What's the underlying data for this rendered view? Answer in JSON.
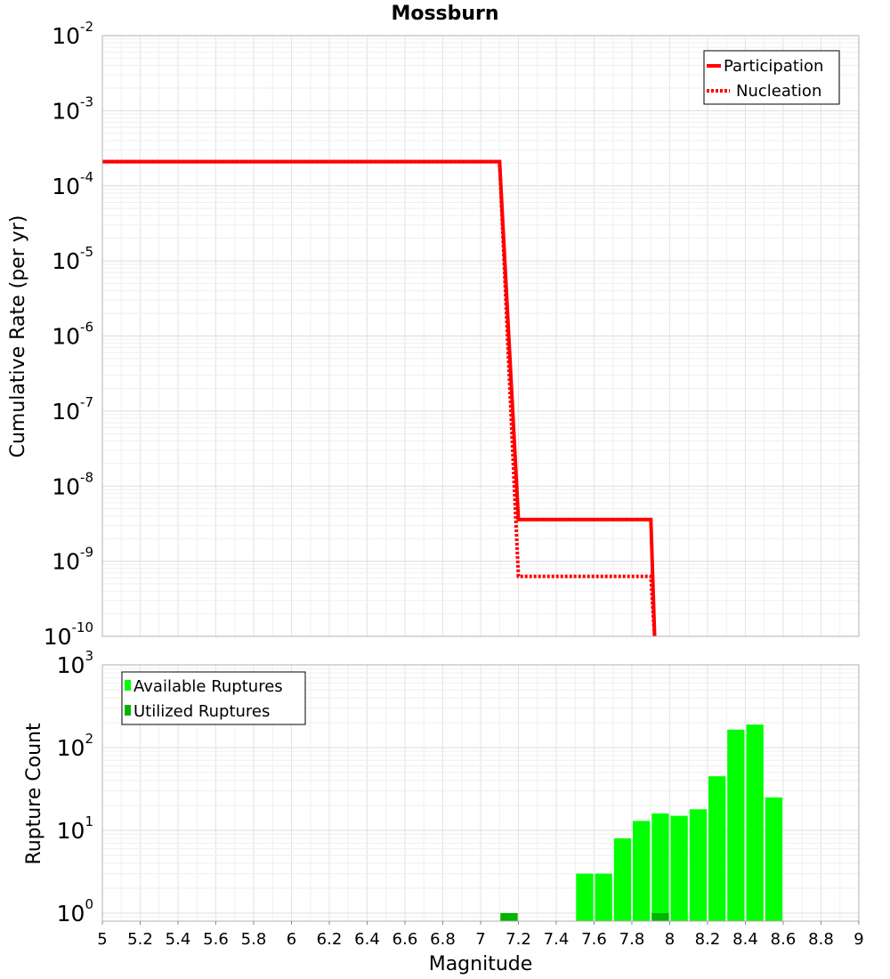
{
  "chart_data": [
    {
      "type": "line",
      "title": "Mossburn",
      "xlabel": "",
      "ylabel": "Cumulative Rate (per yr)",
      "xlim": [
        5,
        9
      ],
      "ylim": [
        1e-10,
        0.01
      ],
      "yscale": "log",
      "y_tick_labels": [
        {
          "base": "10",
          "exp": "-10"
        },
        {
          "base": "10",
          "exp": "-9"
        },
        {
          "base": "10",
          "exp": "-8"
        },
        {
          "base": "10",
          "exp": "-7"
        },
        {
          "base": "10",
          "exp": "-6"
        },
        {
          "base": "10",
          "exp": "-5"
        },
        {
          "base": "10",
          "exp": "-4"
        },
        {
          "base": "10",
          "exp": "-3"
        },
        {
          "base": "10",
          "exp": "-2"
        }
      ],
      "grid": true,
      "legend_position": "top-right",
      "series": [
        {
          "name": "Participation",
          "style": "solid",
          "color": "#ff0000",
          "x": [
            5.0,
            7.1,
            7.2,
            7.9,
            7.92
          ],
          "y": [
            0.00021,
            0.00021,
            3.6e-09,
            3.6e-09,
            1e-10
          ]
        },
        {
          "name": "Nucleation",
          "style": "dotted",
          "color": "#ff0000",
          "x": [
            5.0,
            7.1,
            7.2,
            7.9,
            7.92
          ],
          "y": [
            0.00021,
            0.00021,
            6.3e-10,
            6.3e-10,
            1e-10
          ]
        }
      ]
    },
    {
      "type": "bar",
      "title": "",
      "xlabel": "Magnitude",
      "ylabel": "Rupture Count",
      "xlim": [
        5,
        9
      ],
      "ylim": [
        0.8,
        1000
      ],
      "yscale": "log",
      "x_ticks": [
        "5",
        "5.2",
        "5.4",
        "5.6",
        "5.8",
        "6",
        "6.2",
        "6.4",
        "6.6",
        "6.8",
        "7",
        "7.2",
        "7.4",
        "7.6",
        "7.8",
        "8",
        "8.2",
        "8.4",
        "8.6",
        "8.8",
        "9"
      ],
      "y_tick_labels": [
        {
          "base": "10",
          "exp": "0"
        },
        {
          "base": "10",
          "exp": "1"
        },
        {
          "base": "10",
          "exp": "2"
        },
        {
          "base": "10",
          "exp": "3"
        }
      ],
      "grid": true,
      "legend_position": "top-left",
      "bin_width": 0.1,
      "series": [
        {
          "name": "Available Ruptures",
          "color": "#00ff00",
          "x": [
            7.15,
            7.55,
            7.65,
            7.75,
            7.85,
            7.95,
            8.05,
            8.15,
            8.25,
            8.35,
            8.45,
            8.55
          ],
          "values": [
            1,
            3,
            3,
            8,
            13,
            16,
            15,
            18,
            45,
            165,
            190,
            25
          ]
        },
        {
          "name": "Utilized Ruptures",
          "color": "#00b400",
          "x": [
            7.15,
            7.95
          ],
          "values": [
            1,
            1
          ]
        }
      ]
    }
  ]
}
